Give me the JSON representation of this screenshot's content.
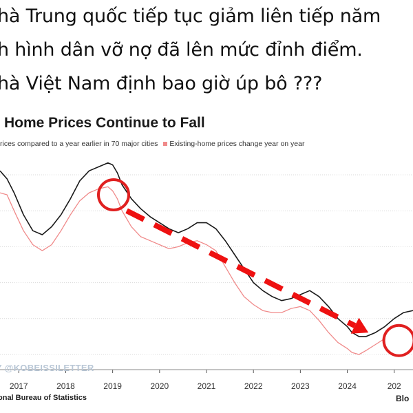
{
  "caption": {
    "lines": [
      "hà Trung quốc tiếp tục giảm liên tiếp năm",
      "h hình dân vỡ nợ đã lên mức đỉnh điểm.",
      "hà Việt Nam định bao giờ úp bô ???"
    ]
  },
  "chart_data": {
    "type": "line",
    "title": "Home Prices Continue to Fall",
    "x_ticks": [
      "2017",
      "2018",
      "2019",
      "2020",
      "2021",
      "2022",
      "2023",
      "2024",
      "202"
    ],
    "xlim": [
      2016.6,
      2025.4
    ],
    "ylim": [
      0,
      1
    ],
    "grid": true,
    "series": [
      {
        "name": "rices compared to a year earlier in 70 major cities",
        "color": "#1a1a1a",
        "x": [
          2016.6,
          2016.75,
          2016.9,
          2017.1,
          2017.3,
          2017.5,
          2017.7,
          2017.9,
          2018.1,
          2018.3,
          2018.5,
          2018.7,
          2018.9,
          2019.0,
          2019.1,
          2019.2,
          2019.4,
          2019.6,
          2019.8,
          2020.0,
          2020.2,
          2020.4,
          2020.6,
          2020.8,
          2021.0,
          2021.2,
          2021.4,
          2021.6,
          2021.8,
          2022.0,
          2022.2,
          2022.4,
          2022.6,
          2022.8,
          2023.0,
          2023.2,
          2023.4,
          2023.6,
          2023.8,
          2024.0,
          2024.1,
          2024.25,
          2024.4,
          2024.6,
          2024.8,
          2025.0,
          2025.2,
          2025.4
        ],
        "y": [
          0.92,
          0.88,
          0.81,
          0.7,
          0.62,
          0.6,
          0.64,
          0.7,
          0.78,
          0.87,
          0.92,
          0.94,
          0.96,
          0.95,
          0.91,
          0.85,
          0.78,
          0.73,
          0.69,
          0.66,
          0.63,
          0.61,
          0.63,
          0.66,
          0.66,
          0.63,
          0.57,
          0.5,
          0.43,
          0.36,
          0.32,
          0.29,
          0.27,
          0.28,
          0.3,
          0.32,
          0.29,
          0.24,
          0.18,
          0.14,
          0.11,
          0.09,
          0.09,
          0.11,
          0.14,
          0.18,
          0.21,
          0.22
        ]
      },
      {
        "name": "Existing-home prices change year on year",
        "color": "#f08a8a",
        "x": [
          2016.6,
          2016.75,
          2016.9,
          2017.1,
          2017.3,
          2017.5,
          2017.7,
          2017.9,
          2018.1,
          2018.3,
          2018.5,
          2018.7,
          2018.9,
          2019.0,
          2019.1,
          2019.2,
          2019.4,
          2019.6,
          2019.8,
          2020.0,
          2020.2,
          2020.4,
          2020.6,
          2020.8,
          2021.0,
          2021.2,
          2021.4,
          2021.6,
          2021.8,
          2022.0,
          2022.2,
          2022.4,
          2022.6,
          2022.8,
          2023.0,
          2023.2,
          2023.4,
          2023.6,
          2023.8,
          2024.0,
          2024.1,
          2024.25,
          2024.4,
          2024.6,
          2024.8
        ],
        "y": [
          0.81,
          0.8,
          0.72,
          0.62,
          0.55,
          0.52,
          0.55,
          0.62,
          0.7,
          0.77,
          0.81,
          0.83,
          0.84,
          0.82,
          0.78,
          0.72,
          0.64,
          0.59,
          0.57,
          0.55,
          0.53,
          0.54,
          0.56,
          0.57,
          0.55,
          0.52,
          0.44,
          0.36,
          0.29,
          0.25,
          0.22,
          0.21,
          0.21,
          0.23,
          0.24,
          0.22,
          0.17,
          0.11,
          0.06,
          0.03,
          0.01,
          0.0,
          0.02,
          0.05,
          0.08
        ]
      }
    ],
    "annotations": {
      "circles": [
        {
          "x": 2019.02,
          "y": 0.8
        },
        {
          "x": 2025.1,
          "y": 0.07
        }
      ],
      "arrow": {
        "from": {
          "x": 2019.3,
          "y": 0.72
        },
        "to": {
          "x": 2024.45,
          "y": 0.11
        }
      },
      "circle_color": "#e02020",
      "arrow_color": "#ee1111"
    }
  },
  "legend": {
    "series1": "rices compared to a year earlier in 70 major cities",
    "series2": "Existing-home prices change year on year"
  },
  "watermark": "Y @KOBEISSILETTER",
  "source": "onal Bureau of Statistics",
  "brand": "Blo"
}
